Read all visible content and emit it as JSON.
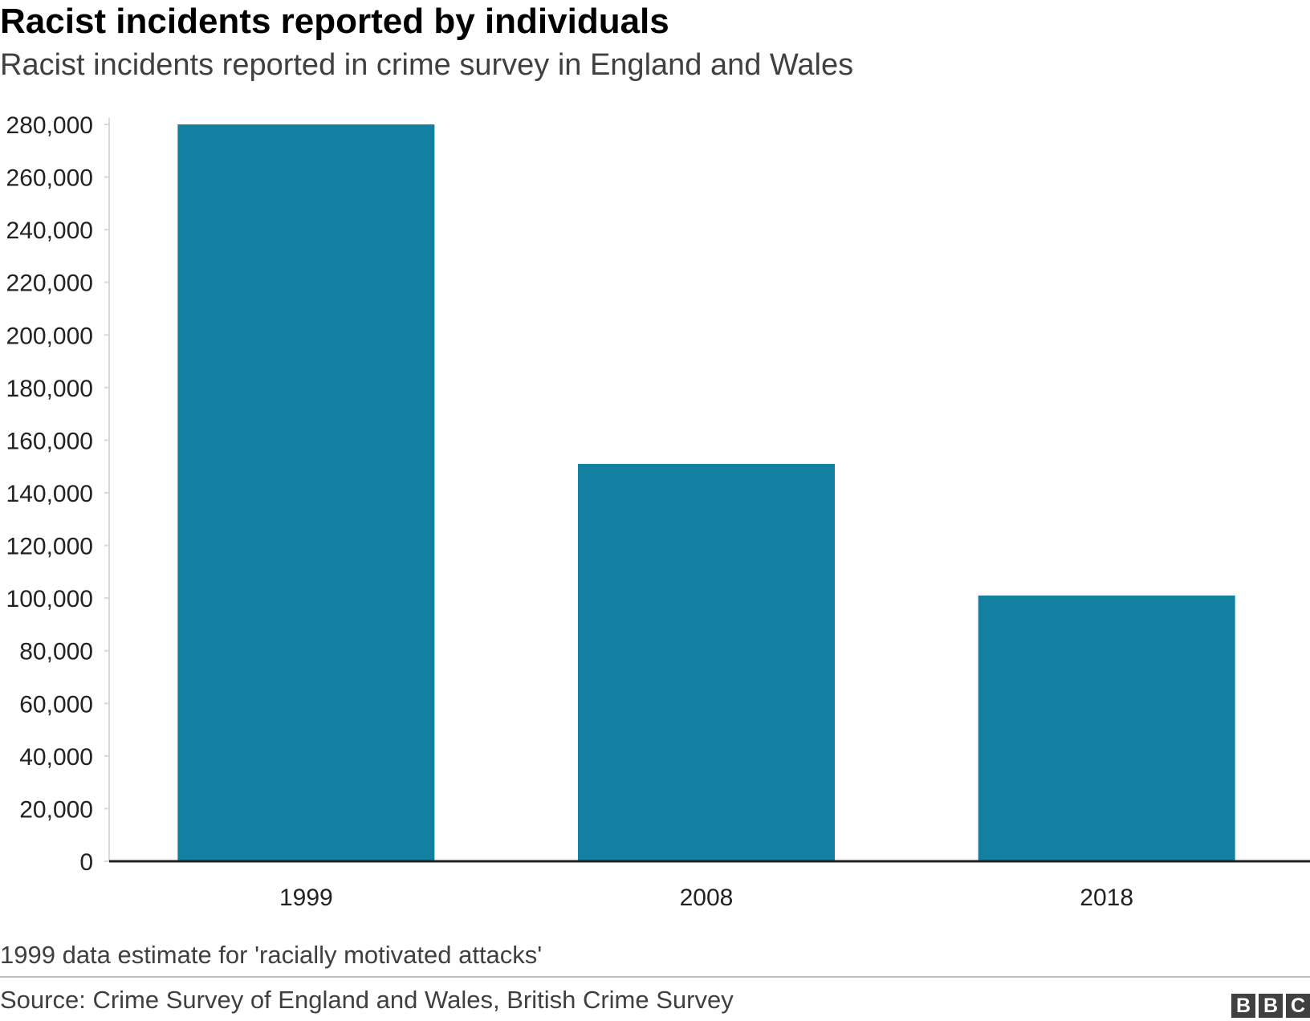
{
  "chart_data": {
    "type": "bar",
    "title": "Racist incidents reported by individuals",
    "subtitle": "Racist incidents reported in crime survey in England and Wales",
    "categories": [
      "1999",
      "2008",
      "2018"
    ],
    "values": [
      280000,
      151000,
      101000
    ],
    "ylim": [
      0,
      280000
    ],
    "yticks": [
      0,
      20000,
      40000,
      60000,
      80000,
      100000,
      120000,
      140000,
      160000,
      180000,
      200000,
      220000,
      240000,
      260000,
      280000
    ],
    "ytick_labels": [
      "0",
      "20,000",
      "40,000",
      "60,000",
      "80,000",
      "100,000",
      "120,000",
      "140,000",
      "160,000",
      "180,000",
      "200,000",
      "220,000",
      "240,000",
      "260,000",
      "280,000"
    ],
    "bar_color": "#1380a1",
    "grid": false,
    "note": "1999 data estimate for 'racially motivated attacks'"
  },
  "footer": {
    "source": "Source: Crime Survey of England and Wales, British Crime Survey",
    "logo_letters": [
      "B",
      "B",
      "C"
    ]
  }
}
